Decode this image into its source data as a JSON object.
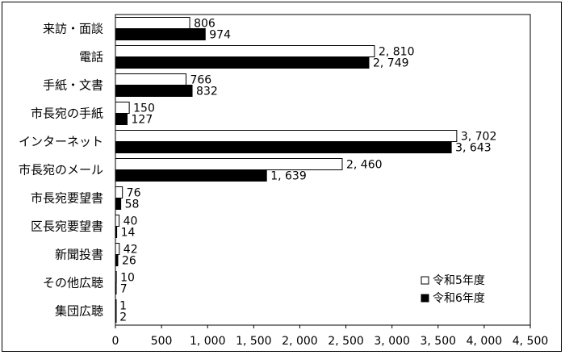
{
  "chart_data": {
    "type": "bar",
    "orientation": "horizontal",
    "categories": [
      "来訪・面談",
      "電話",
      "手紙・文書",
      "市長宛の手紙",
      "インターネット",
      "市長宛のメール",
      "市長宛要望書",
      "区長宛要望書",
      "新聞投書",
      "その他広聴",
      "集団広聴"
    ],
    "series": [
      {
        "name": "令和5年度",
        "values": [
          806,
          2810,
          766,
          150,
          3702,
          2460,
          76,
          40,
          42,
          10,
          1
        ],
        "labels": [
          "806",
          "2, 810",
          "766",
          "150",
          "3, 702",
          "2, 460",
          "76",
          "40",
          "42",
          "10",
          "1"
        ],
        "color": "#ffffff"
      },
      {
        "name": "令和6年度",
        "values": [
          974,
          2749,
          832,
          127,
          3643,
          1639,
          58,
          14,
          26,
          7,
          2
        ],
        "labels": [
          "974",
          "2, 749",
          "832",
          "127",
          "3, 643",
          "1, 639",
          "58",
          "14",
          "26",
          "7",
          "2"
        ],
        "color": "#000000"
      }
    ],
    "xlim": [
      0,
      4500
    ],
    "xticks": [
      0,
      500,
      1000,
      1500,
      2000,
      2500,
      3000,
      3500,
      4000,
      4500
    ],
    "xtick_labels": [
      "0",
      "500",
      "1, 000",
      "1, 500",
      "2, 000",
      "2, 500",
      "3, 000",
      "3, 500",
      "4, 000",
      "4, 500"
    ],
    "grid": false,
    "legend_position": "bottom-right"
  }
}
